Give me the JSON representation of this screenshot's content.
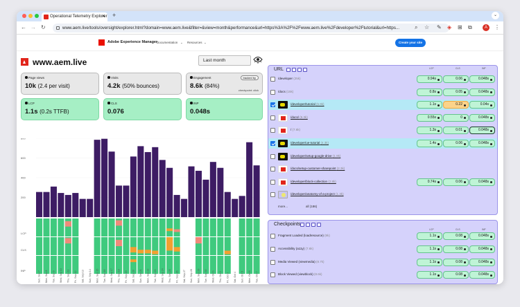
{
  "browser": {
    "tab_title": "Operational Telemetry Explorer",
    "url": "www.aem.live/tools/oversight/explorer.html?domain=www.aem.live&filter=&view=month&performance&url=https%3A%2F%2Fwww.aem.live%2Fdeveloper%2Ftutorial&url=https...",
    "profile_initial": "A"
  },
  "site_nav": {
    "product": "Adobe Experience Manager",
    "menu": [
      "Documentation",
      "Resources"
    ],
    "cta": "Create your site"
  },
  "header": {
    "domain": "www.aem.live",
    "date_range": "Last month"
  },
  "metrics": [
    {
      "label": "Page views",
      "value": "10k",
      "sub": "(2.4 per visit)",
      "good": false
    },
    {
      "label": "Visits",
      "value": "4.2k",
      "sub": "(50% bounces)",
      "good": false
    },
    {
      "label": "Engagement",
      "value": "8.6k",
      "sub": "(84%)",
      "good": false,
      "badge": "tracked by",
      "note": "checkpoint: click"
    },
    {
      "label": "LCP",
      "value": "1.1s",
      "sub": "(0.2s TTFB)",
      "good": true
    },
    {
      "label": "CLS",
      "value": "0.076",
      "sub": "",
      "good": true
    },
    {
      "label": "INP",
      "value": "0.048s",
      "sub": "",
      "good": true
    }
  ],
  "chart_data": {
    "type": "bar",
    "categories": [
      "Sun, Sep 7",
      "Mon, Sep 8",
      "Tue, Sep 9",
      "Wed, Sep 10",
      "Thu, Sep 11",
      "Fri, Sep 12",
      "Sat, Sep 13",
      "Sun, Sep 14",
      "Mon, Sep 15",
      "Tue, Sep 16",
      "Wed, Sep 17",
      "Thu, Sep 18",
      "Fri, Sep 19",
      "Sat, Sep 20",
      "Sun, Sep 21",
      "Mon, Sep 22",
      "Tue, Sep 23",
      "Wed, Sep 24",
      "Thu, Sep 25",
      "Fri, Sep 26",
      "Sat, Sep 27",
      "Sun, Sep 28",
      "Mon, Sep 29",
      "Tue, Sep 30",
      "Wed, Oct 1",
      "Thu, Oct 2",
      "Fri, Oct 3",
      "Sat, Oct 4",
      "Sun, Oct 5",
      "Mon, Oct 6",
      "Tue, Oct 7"
    ],
    "values": [
      255,
      255,
      310,
      245,
      225,
      245,
      185,
      185,
      785,
      795,
      665,
      320,
      320,
      615,
      720,
      660,
      710,
      580,
      500,
      225,
      185,
      515,
      470,
      380,
      560,
      500,
      255,
      185,
      215,
      760,
      525
    ],
    "ylim": [
      0,
      800
    ],
    "yticks": [
      200,
      400,
      600,
      800
    ],
    "ytick_labels": [
      "200",
      "400",
      "600",
      "800"
    ],
    "row_labels": [
      "LCP",
      "CLS",
      "INP"
    ],
    "colors": {
      "bar": "#3d1c64",
      "good": "#3fca7e",
      "ni": "#f2a030",
      "poor": "#f08a7a"
    }
  },
  "url_panel": {
    "title": "URL",
    "columns": [
      "LCP",
      "CLS",
      "INP"
    ],
    "rows": [
      {
        "path": "/developer",
        "count": "(25k)",
        "thumb": "",
        "checked": false,
        "selected": false,
        "underline": false,
        "lcp": "0.94s",
        "cls": "0.06",
        "inp": "0.048s",
        "cls_poor": false,
        "inp_focus": false
      },
      {
        "path": "/docs",
        "count": "(15k)",
        "thumb": "",
        "checked": false,
        "selected": false,
        "underline": false,
        "lcp": "0.8s",
        "cls": "0.05",
        "inp": "0.048s",
        "cls_poor": false,
        "inp_focus": false
      },
      {
        "path": "/developer/tutorial",
        "count": "(5.9k)",
        "thumb": "b",
        "checked": true,
        "selected": true,
        "underline": true,
        "lcp": "1.1s",
        "cls": "0.22",
        "inp": "0.04s",
        "cls_poor": true,
        "inp_focus": false
      },
      {
        "path": "/docs/",
        "count": "(5.3k)",
        "thumb": "a",
        "checked": false,
        "selected": false,
        "underline": true,
        "lcp": "0.55s",
        "cls": "0",
        "inp": "0.048s",
        "cls_poor": false,
        "inp_focus": false
      },
      {
        "path": "/",
        "count": "(7.6k)",
        "thumb": "a",
        "checked": false,
        "selected": false,
        "underline": false,
        "lcp": "1.3s",
        "cls": "0.01",
        "inp": "0.048s",
        "cls_poor": false,
        "inp_focus": true
      },
      {
        "path": "/developer/ue-tutorial",
        "count": "(4.3k)",
        "thumb": "b",
        "checked": true,
        "selected": true,
        "underline": true,
        "lcp": "1.4s",
        "cls": "0.06",
        "inp": "0.048s",
        "cls_poor": false,
        "inp_focus": false
      },
      {
        "path": "/developer/setup-google-drive",
        "count": "(1.9k)",
        "thumb": "b",
        "checked": false,
        "selected": false,
        "underline": true,
        "lcp": "",
        "cls": "",
        "inp": "",
        "cls_poor": false,
        "inp_focus": false
      },
      {
        "path": "/docs/setup-customer-sharepoint",
        "count": "(2.3k)",
        "thumb": "a",
        "checked": false,
        "selected": false,
        "underline": true,
        "lcp": "",
        "cls": "",
        "inp": "",
        "cls_poor": false,
        "inp_focus": false
      },
      {
        "path": "/developer/block-collection",
        "count": "(2.8k)",
        "thumb": "a",
        "checked": false,
        "selected": false,
        "underline": true,
        "lcp": "0.74s",
        "cls": "0.06",
        "inp": "0.048s",
        "cls_poor": false,
        "inp_focus": false
      },
      {
        "path": "/developer/anatomy-of-a-project",
        "count": "(1.3k)",
        "thumb": "c",
        "checked": false,
        "selected": false,
        "underline": true,
        "lcp": "",
        "cls": "",
        "inp": "",
        "cls_poor": false,
        "inp_focus": false
      }
    ],
    "more": "more...",
    "all": "all (186)"
  },
  "checkpoint_panel": {
    "title": "Checkpoints",
    "columns": [
      "LCP",
      "CLS",
      "INP"
    ],
    "rows": [
      {
        "name": "Fragment Loaded (loadresource)",
        "count": "(9k)",
        "lcp": "1.1s",
        "cls": "0.08",
        "inp": "0.048s"
      },
      {
        "name": "Accessibility (a11y)",
        "count": "(7.6k)",
        "lcp": "1.1s",
        "cls": "0.08",
        "inp": "0.048s"
      },
      {
        "name": "Media Viewed (viewmedia)",
        "count": "(8.7k)",
        "lcp": "1.1s",
        "cls": "0.08",
        "inp": "0.048s"
      },
      {
        "name": "Block Viewed (viewblock)",
        "count": "(8.6k)",
        "lcp": "1.1s",
        "cls": "0.08",
        "inp": "0.048s"
      },
      {
        "name": "Largest Contentful Paint (cwv-lcp)",
        "count": "(6.7k)",
        "lcp": "1.1s",
        "cls": "0.08",
        "inp": "0.048s"
      }
    ]
  }
}
